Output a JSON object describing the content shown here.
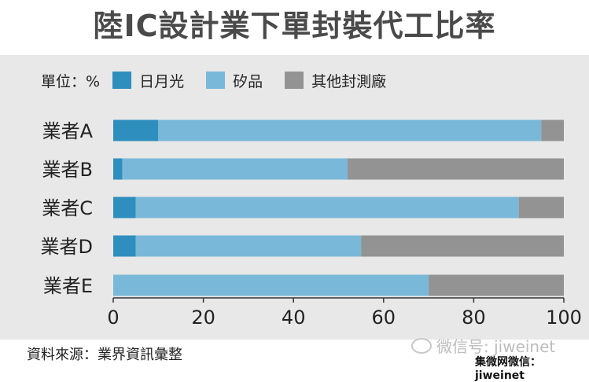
{
  "title": "陸IC設計業下單封裝代工比率",
  "legend": {
    "unit": "單位：%",
    "entries": [
      {
        "name": "日月光",
        "color": "#2e8fbf"
      },
      {
        "name": "矽品",
        "color": "#7ab8d9"
      },
      {
        "name": "其他封測廠",
        "color": "#939393"
      }
    ]
  },
  "chart_data": {
    "type": "bar",
    "orientation": "horizontal",
    "stacked": true,
    "categories": [
      "業者A",
      "業者B",
      "業者C",
      "業者D",
      "業者E"
    ],
    "series": [
      {
        "name": "日月光",
        "color": "#2e8fbf",
        "values": [
          10,
          2,
          5,
          5,
          0
        ]
      },
      {
        "name": "矽品",
        "color": "#7ab8d9",
        "values": [
          85,
          50,
          85,
          50,
          70
        ]
      },
      {
        "name": "其他封測廠",
        "color": "#939393",
        "values": [
          5,
          48,
          10,
          45,
          30
        ]
      }
    ],
    "xlim": [
      0,
      100
    ],
    "xticks": [
      "0",
      "20",
      "40",
      "60",
      "80",
      "100"
    ],
    "grid": false,
    "legend_position": "top-left"
  },
  "source": "資料來源：業界資訊彙整",
  "watermark": {
    "line1": "微信号: jiweinet",
    "line2": "集微网微信： jiweinet"
  }
}
